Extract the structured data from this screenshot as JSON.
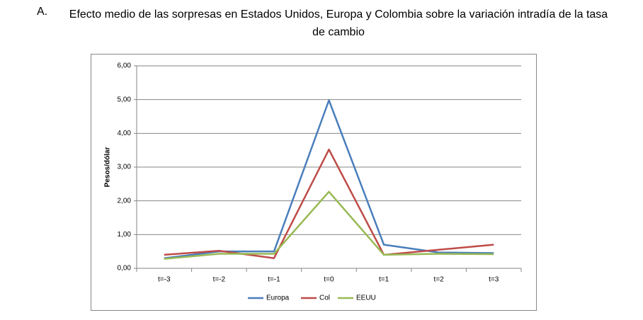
{
  "chart_data": {
    "type": "line",
    "panel_label": "A.",
    "title": "Efecto medio de las sorpresas en Estados Unidos, Europa y Colombia  sobre la variación intradía de la tasa de cambio",
    "ylabel": "Pesos/dólar",
    "categories": [
      "t=-3",
      "t=-2",
      "t=-1",
      "t=0",
      "t=1",
      "t=2",
      "t=3"
    ],
    "series": [
      {
        "name": "Europa",
        "color": "#4a7ebb",
        "values": [
          0.3,
          0.5,
          0.5,
          4.98,
          0.7,
          0.47,
          0.45
        ]
      },
      {
        "name": "Col",
        "color": "#be4b48",
        "values": [
          0.4,
          0.52,
          0.3,
          3.52,
          0.4,
          0.55,
          0.7
        ]
      },
      {
        "name": "EEUU",
        "color": "#98b954",
        "values": [
          0.28,
          0.43,
          0.43,
          2.27,
          0.4,
          0.43,
          0.42
        ]
      }
    ],
    "ylim": [
      0,
      6
    ],
    "yticks": [
      {
        "value": 0,
        "label": "0,00"
      },
      {
        "value": 1,
        "label": "1,00"
      },
      {
        "value": 2,
        "label": "2,00"
      },
      {
        "value": 3,
        "label": "3,00"
      },
      {
        "value": 4,
        "label": "4,00"
      },
      {
        "value": 5,
        "label": "5,00"
      },
      {
        "value": 6,
        "label": "6,00"
      }
    ],
    "grid": true,
    "legend": "bottom"
  }
}
